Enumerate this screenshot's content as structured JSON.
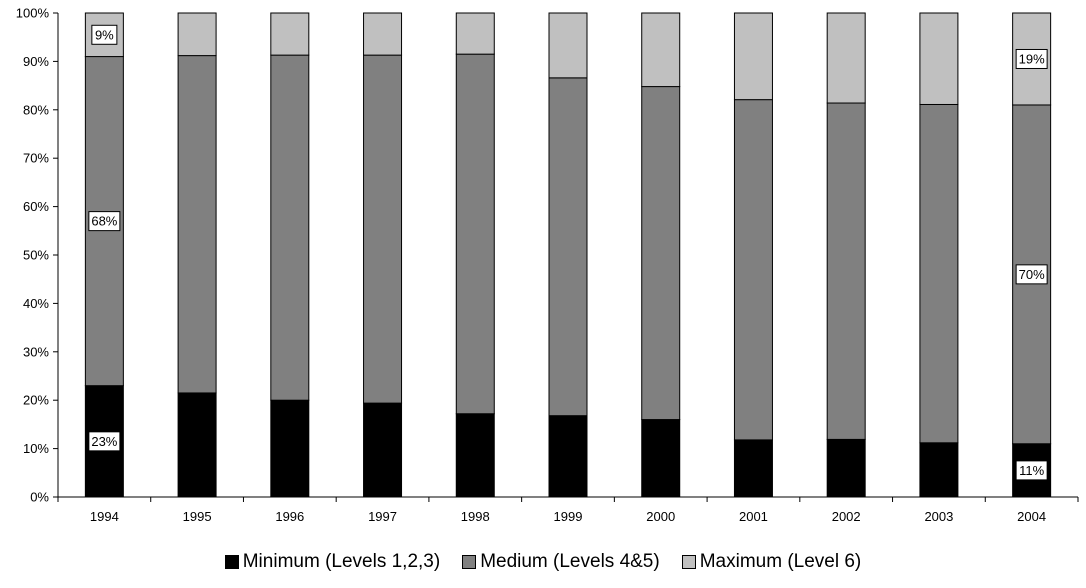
{
  "chart_data": {
    "type": "bar",
    "stacked": true,
    "percent_stacked": true,
    "title": "",
    "xlabel": "",
    "ylabel": "",
    "ylim": [
      0,
      100
    ],
    "y_ticks": [
      "0%",
      "10%",
      "20%",
      "30%",
      "40%",
      "50%",
      "60%",
      "70%",
      "80%",
      "90%",
      "100%"
    ],
    "grid": false,
    "legend_position": "bottom",
    "categories": [
      "1994",
      "1995",
      "1996",
      "1997",
      "1998",
      "1999",
      "2000",
      "2001",
      "2002",
      "2003",
      "2004"
    ],
    "series": [
      {
        "name": "Minimum (Levels 1,2,3)",
        "color": "#000000",
        "values": [
          23,
          21.5,
          20,
          19.4,
          17.2,
          16.8,
          16,
          11.8,
          11.9,
          11.2,
          11
        ]
      },
      {
        "name": "Medium (Levels 4&5)",
        "color": "#808080",
        "values": [
          68,
          69.7,
          71.3,
          71.9,
          74.3,
          69.8,
          68.8,
          70.3,
          69.5,
          69.9,
          70
        ]
      },
      {
        "name": "Maximum (Level 6)",
        "color": "#c0c0c0",
        "values": [
          9,
          8.8,
          8.7,
          8.7,
          8.5,
          13.4,
          15.2,
          17.9,
          18.6,
          18.9,
          19
        ]
      }
    ],
    "data_labels": [
      {
        "category": "1994",
        "series": "Minimum (Levels 1,2,3)",
        "text": "23%",
        "value": 23
      },
      {
        "category": "1994",
        "series": "Medium (Levels 4&5)",
        "text": "68%",
        "value": 68
      },
      {
        "category": "1994",
        "series": "Maximum (Level 6)",
        "text": "9%",
        "value": 9
      },
      {
        "category": "2004",
        "series": "Minimum (Levels 1,2,3)",
        "text": "11%",
        "value": 11
      },
      {
        "category": "2004",
        "series": "Medium (Levels 4&5)",
        "text": "70%",
        "value": 70
      },
      {
        "category": "2004",
        "series": "Maximum (Level 6)",
        "text": "19%",
        "value": 19
      }
    ]
  }
}
